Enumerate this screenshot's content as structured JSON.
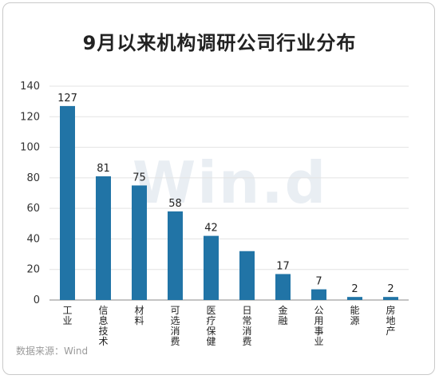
{
  "title": "9月以来机构调研公司行业分布",
  "source": "数据来源：Wind",
  "watermark": "Win.d",
  "colors": {
    "bar": "#2174a6",
    "grid": "#e3e3e3",
    "axis": "#8a8a8a"
  },
  "chart_data": {
    "type": "bar",
    "title": "9月以来机构调研公司行业分布",
    "xlabel": "",
    "ylabel": "",
    "ylim": [
      0,
      140
    ],
    "yticks": [
      0,
      20,
      40,
      60,
      80,
      100,
      120,
      140
    ],
    "grid": true,
    "categories": [
      "工业",
      "信息技术",
      "材料",
      "可选消费",
      "医疗保健",
      "日常消费",
      "金融",
      "公用事业",
      "能源",
      "房地产"
    ],
    "values": [
      127,
      81,
      75,
      58,
      42,
      32,
      17,
      7,
      2,
      2
    ],
    "data_labels": [
      "127",
      "81",
      "75",
      "58",
      "42",
      "",
      "17",
      "7",
      "2",
      "2"
    ]
  }
}
